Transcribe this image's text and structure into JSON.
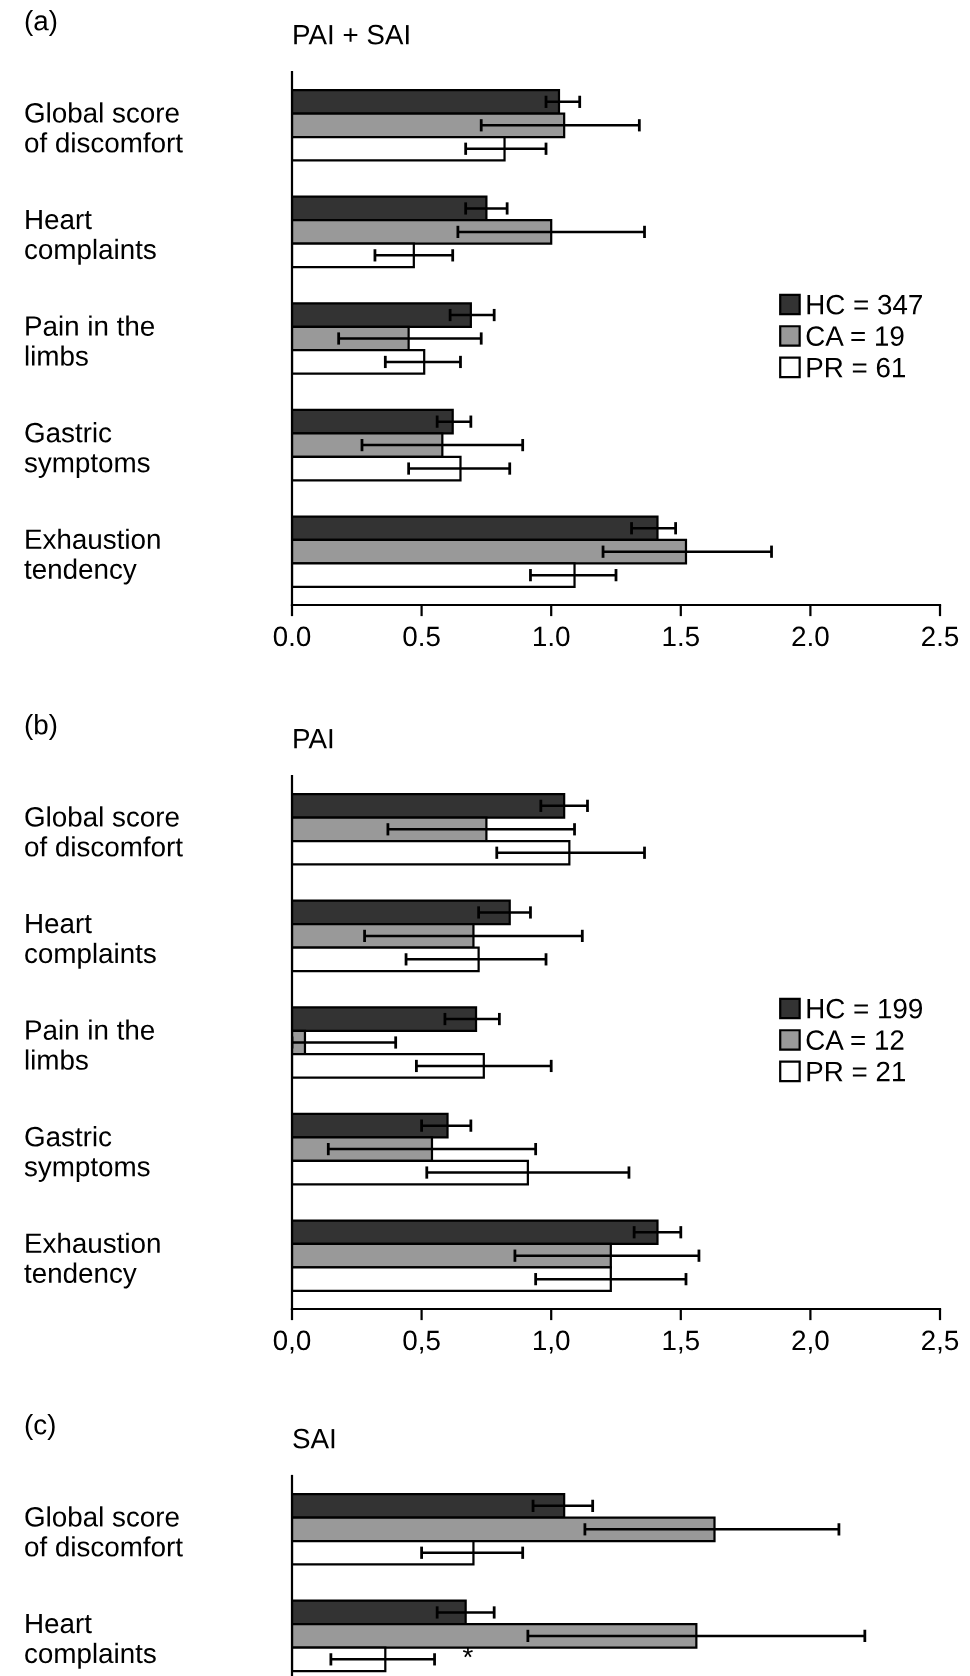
{
  "chart_data": [
    {
      "type": "bar",
      "orientation": "horizontal",
      "title": "PAI + SAI",
      "annotations": [
        "(a)"
      ],
      "categories": [
        "Global score\nof discomfort",
        "Heart\ncomplaints",
        "Pain in the\nlimbs",
        "Gastric\nsymptoms",
        "Exhaustion\ntendency"
      ],
      "series": [
        {
          "name": "HC = 347",
          "color": "#333333",
          "values": [
            1.03,
            0.75,
            0.69,
            0.62,
            1.41
          ],
          "errors": [
            [
              0.98,
              1.11
            ],
            [
              0.67,
              0.83
            ],
            [
              0.61,
              0.78
            ],
            [
              0.56,
              0.69
            ],
            [
              1.31,
              1.48
            ]
          ]
        },
        {
          "name": "CA = 19",
          "color": "#999999",
          "values": [
            1.05,
            1.0,
            0.45,
            0.58,
            1.52
          ],
          "errors": [
            [
              0.73,
              1.34
            ],
            [
              0.64,
              1.36
            ],
            [
              0.18,
              0.73
            ],
            [
              0.27,
              0.89
            ],
            [
              1.2,
              1.85
            ]
          ]
        },
        {
          "name": "PR = 61",
          "color": "#ffffff",
          "values": [
            0.82,
            0.47,
            0.51,
            0.65,
            1.09
          ],
          "errors": [
            [
              0.67,
              0.98
            ],
            [
              0.32,
              0.62
            ],
            [
              0.36,
              0.65
            ],
            [
              0.45,
              0.84
            ],
            [
              0.92,
              1.25
            ]
          ]
        }
      ],
      "xlim": [
        0,
        2.5
      ],
      "xticks": [
        {
          "value": 0,
          "label": "0.0"
        },
        {
          "value": 0.5,
          "label": "0.5"
        },
        {
          "value": 1,
          "label": "1.0"
        },
        {
          "value": 1.5,
          "label": "1.5"
        },
        {
          "value": 2,
          "label": "2.0"
        },
        {
          "value": 2.5,
          "label": "2.5"
        }
      ],
      "legend": "right",
      "grid": false
    },
    {
      "type": "bar",
      "orientation": "horizontal",
      "title": "PAI",
      "annotations": [
        "(b)"
      ],
      "categories": [
        "Global score\nof discomfort",
        "Heart\ncomplaints",
        "Pain in the\nlimbs",
        "Gastric\nsymptoms",
        "Exhaustion\ntendency"
      ],
      "series": [
        {
          "name": "HC = 199",
          "color": "#333333",
          "values": [
            1.05,
            0.84,
            0.71,
            0.6,
            1.41
          ],
          "errors": [
            [
              0.96,
              1.14
            ],
            [
              0.72,
              0.92
            ],
            [
              0.59,
              0.8
            ],
            [
              0.5,
              0.69
            ],
            [
              1.32,
              1.5
            ]
          ]
        },
        {
          "name": "CA = 12",
          "color": "#999999",
          "values": [
            0.75,
            0.7,
            0.05,
            0.54,
            1.23
          ],
          "errors": [
            [
              0.37,
              1.09
            ],
            [
              0.28,
              1.12
            ],
            [
              0,
              0.4
            ],
            [
              0.14,
              0.94
            ],
            [
              0.86,
              1.57
            ]
          ]
        },
        {
          "name": "PR = 21",
          "color": "#ffffff",
          "values": [
            1.07,
            0.72,
            0.74,
            0.91,
            1.23
          ],
          "errors": [
            [
              0.79,
              1.36
            ],
            [
              0.44,
              0.98
            ],
            [
              0.48,
              1.0
            ],
            [
              0.52,
              1.3
            ],
            [
              0.94,
              1.52
            ]
          ]
        }
      ],
      "xlim": [
        0,
        2.5
      ],
      "xticks": [
        {
          "value": 0,
          "label": "0,0"
        },
        {
          "value": 0.5,
          "label": "0,5"
        },
        {
          "value": 1,
          "label": "1,0"
        },
        {
          "value": 1.5,
          "label": "1,5"
        },
        {
          "value": 2,
          "label": "2,0"
        },
        {
          "value": 2.5,
          "label": "2,5"
        }
      ],
      "legend": "right",
      "grid": false
    },
    {
      "type": "bar",
      "orientation": "horizontal",
      "title": "SAI",
      "annotations": [
        "(c)",
        "*"
      ],
      "categories": [
        "Global score\nof discomfort",
        "Heart\ncomplaints"
      ],
      "series": [
        {
          "color": "#333333",
          "values": [
            1.05,
            0.67
          ],
          "errors": [
            [
              0.93,
              1.16
            ],
            [
              0.56,
              0.78
            ]
          ]
        },
        {
          "color": "#999999",
          "values": [
            1.63,
            1.56
          ],
          "errors": [
            [
              1.13,
              2.11
            ],
            [
              0.91,
              2.21
            ]
          ]
        },
        {
          "color": "#ffffff",
          "values": [
            0.7,
            0.36
          ],
          "errors": [
            [
              0.5,
              0.89
            ],
            [
              0.15,
              0.55
            ]
          ]
        }
      ],
      "xlim": [
        0,
        2.5
      ],
      "tick_labels": "y",
      "grid": false
    }
  ]
}
